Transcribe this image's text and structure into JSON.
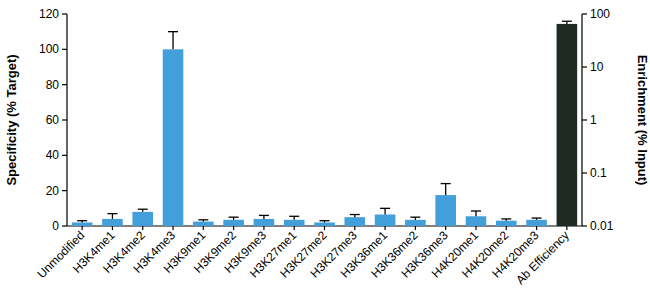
{
  "chart_data": {
    "type": "bar",
    "categories": [
      "Unmodified",
      "H3K4me1",
      "H3K4me2",
      "H3K4me3",
      "H3K9me1",
      "H3K9me2",
      "H3K9me3",
      "H3K27me1",
      "H3K27me2",
      "H3K27me3",
      "H3K36me1",
      "H3K36me2",
      "H3K36me3",
      "H4K20me1",
      "H4K20me2",
      "H4K20me3",
      "Ab Efficiency"
    ],
    "y_label": "Specificity (% Target)",
    "y2_label": "Enrichment (% Input)",
    "ylim": [
      0,
      120
    ],
    "yticks": [
      0,
      20,
      40,
      60,
      80,
      100,
      120
    ],
    "y2lim": [
      0.01,
      100
    ],
    "y2ticks": [
      0.01,
      0.1,
      1,
      10,
      100
    ],
    "log": "y2",
    "series": [
      {
        "color": "#439fd9",
        "values": [
          2,
          4,
          8,
          100,
          2.5,
          3.5,
          4,
          3.5,
          2,
          5,
          6.5,
          3.5,
          17.5,
          5.5,
          3,
          3.5,
          null
        ],
        "errors": [
          1,
          3,
          1.5,
          10,
          1,
          1.5,
          2,
          2,
          1,
          1.5,
          3.5,
          1.5,
          6.5,
          3,
          1,
          1,
          null
        ]
      },
      {
        "color": "#1f2a24",
        "axis": "y2",
        "values": [
          null,
          null,
          null,
          null,
          null,
          null,
          null,
          null,
          null,
          null,
          null,
          null,
          null,
          null,
          null,
          null,
          65
        ],
        "errors": [
          null,
          null,
          null,
          null,
          null,
          null,
          null,
          null,
          null,
          null,
          null,
          null,
          null,
          null,
          null,
          null,
          8
        ]
      }
    ]
  }
}
